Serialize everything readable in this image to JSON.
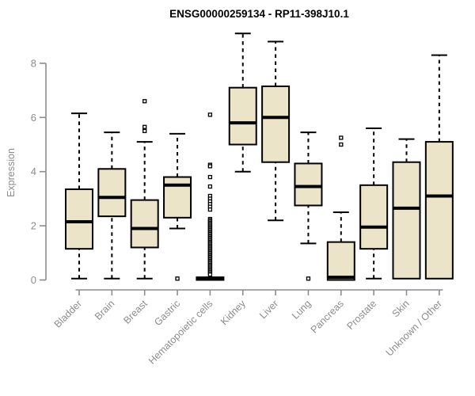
{
  "title": "ENSG00000259134 - RP11-398J10.1",
  "chart_data": {
    "type": "boxplot",
    "title": "ENSG00000259134 - RP11-398J10.1",
    "xlabel": "",
    "ylabel": "Expression",
    "ylim": [
      0,
      9.3
    ],
    "y_ticks": [
      0,
      2,
      4,
      6,
      8
    ],
    "grid": false,
    "legend": "none",
    "categories": [
      "Bladder",
      "Brain",
      "Breast",
      "Gastric",
      "Hematopoietic cells",
      "Kidney",
      "Liver",
      "Lung",
      "Pancreas",
      "Prostate",
      "Skin",
      "Unknown / Other"
    ],
    "series": [
      {
        "category": "Bladder",
        "whisker_low": 0.05,
        "q1": 1.15,
        "median": 2.15,
        "q3": 3.35,
        "whisker_high": 6.15,
        "outliers": []
      },
      {
        "category": "Brain",
        "whisker_low": 0.05,
        "q1": 2.35,
        "median": 3.05,
        "q3": 4.1,
        "whisker_high": 5.45,
        "outliers": []
      },
      {
        "category": "Breast",
        "whisker_low": 0.05,
        "q1": 1.2,
        "median": 1.9,
        "q3": 2.95,
        "whisker_high": 5.1,
        "outliers": [
          6.6,
          5.65,
          5.5
        ]
      },
      {
        "category": "Gastric",
        "whisker_low": 1.9,
        "q1": 2.3,
        "median": 3.5,
        "q3": 3.8,
        "whisker_high": 5.4,
        "outliers": [
          0.05
        ]
      },
      {
        "category": "Hematopoietic cells",
        "whisker_low": 0,
        "q1": 0,
        "median": 0.05,
        "q3": 0.1,
        "whisker_high": 0.1,
        "outliers": [
          6.1,
          4.25,
          4.2,
          3.8,
          3.45,
          3.1,
          3.0,
          2.9,
          2.8,
          2.7,
          2.6,
          2.25,
          2.2,
          2.15,
          2.1,
          2.05,
          2.0,
          1.95,
          1.9,
          1.85,
          1.8,
          1.75,
          1.7,
          1.65,
          1.6,
          1.55,
          1.5,
          1.45,
          1.4,
          1.35,
          1.3,
          1.25,
          1.2,
          1.15,
          1.1,
          1.05,
          1.0,
          0.95,
          0.9,
          0.85,
          0.8,
          0.75,
          0.7,
          0.65,
          0.6,
          0.55,
          0.5,
          0.45,
          0.4,
          0.35,
          0.3,
          0.25,
          0.2
        ]
      },
      {
        "category": "Kidney",
        "whisker_low": 4.0,
        "q1": 5.0,
        "median": 5.8,
        "q3": 7.1,
        "whisker_high": 9.1,
        "outliers": []
      },
      {
        "category": "Liver",
        "whisker_low": 2.2,
        "q1": 4.35,
        "median": 6.0,
        "q3": 7.15,
        "whisker_high": 8.8,
        "outliers": []
      },
      {
        "category": "Lung",
        "whisker_low": 1.35,
        "q1": 2.75,
        "median": 3.45,
        "q3": 4.3,
        "whisker_high": 5.45,
        "outliers": [
          0.05
        ]
      },
      {
        "category": "Pancreas",
        "whisker_low": 0,
        "q1": 0,
        "median": 0.1,
        "q3": 1.4,
        "whisker_high": 2.5,
        "outliers": [
          5.25,
          5.0
        ]
      },
      {
        "category": "Prostate",
        "whisker_low": 0.05,
        "q1": 1.15,
        "median": 1.95,
        "q3": 3.5,
        "whisker_high": 5.6,
        "outliers": []
      },
      {
        "category": "Skin",
        "whisker_low": 0.05,
        "q1": 0.05,
        "median": 2.65,
        "q3": 4.35,
        "whisker_high": 5.2,
        "outliers": []
      },
      {
        "category": "Unknown / Other",
        "whisker_low": 0.05,
        "q1": 0.05,
        "median": 3.1,
        "q3": 5.1,
        "whisker_high": 8.3,
        "outliers": []
      }
    ],
    "colors": {
      "box_fill": "#EBE4C8",
      "box_border": "#000000",
      "median": "#000000",
      "whisker": "#000000",
      "outlier_fill": "#FFFFFF",
      "outlier_border": "#000000",
      "axis": "#8C8C8C",
      "tick_label": "#8C8C8C",
      "title": "#000000",
      "background": "#FFFFFF"
    }
  }
}
